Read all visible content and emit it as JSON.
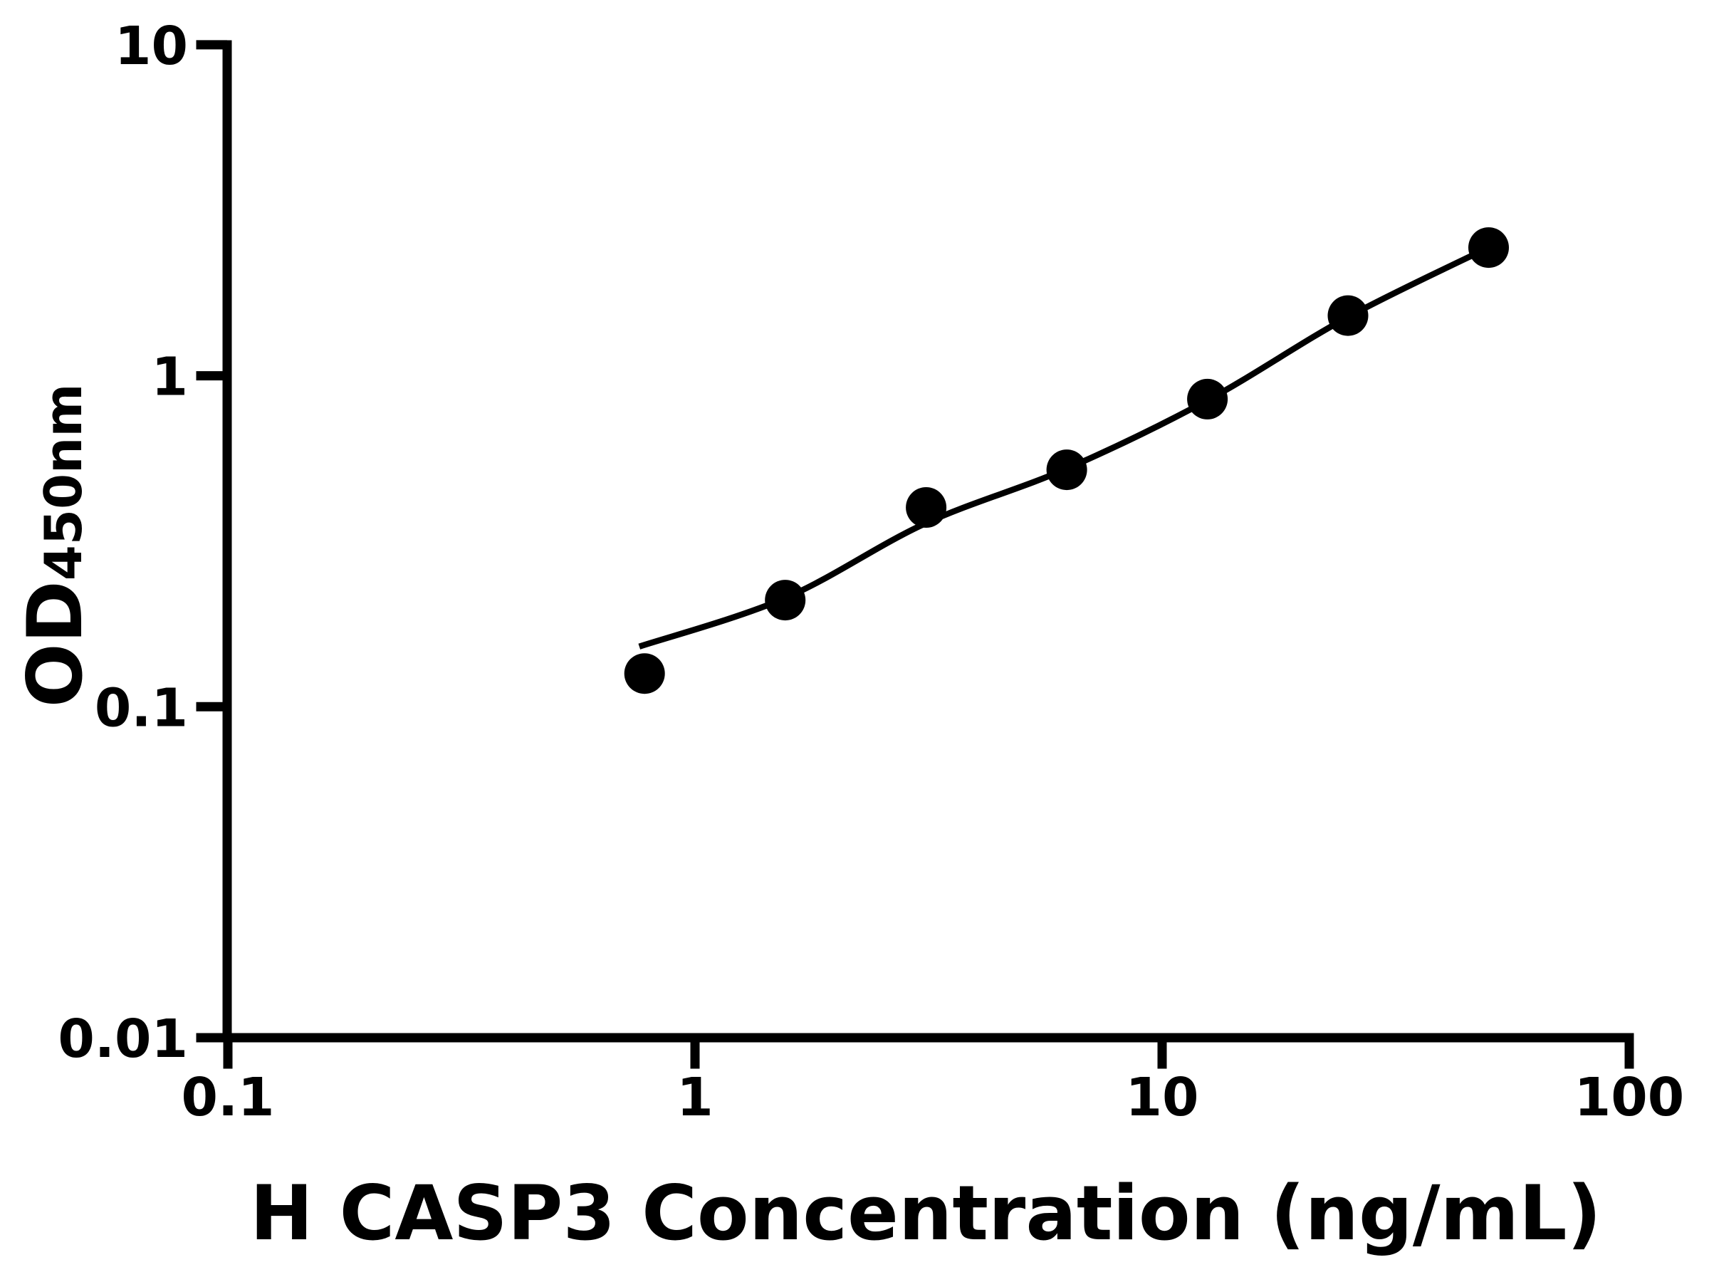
{
  "figure": {
    "background": "#ffffff",
    "foreground": "#000000"
  },
  "chart_data": {
    "type": "scatter",
    "title": "",
    "xlabel": "H CASP3 Concentration (ng/mL)",
    "ylabel_main": "OD",
    "ylabel_sub": "450nm",
    "x_scale": "log",
    "y_scale": "log",
    "xlim": [
      0.1,
      100
    ],
    "ylim": [
      0.01,
      10
    ],
    "grid": false,
    "legend_position": "none",
    "x_ticks": [
      {
        "v": 0.1,
        "label": "0.1"
      },
      {
        "v": 1,
        "label": "1"
      },
      {
        "v": 10,
        "label": "10"
      },
      {
        "v": 100,
        "label": "100"
      }
    ],
    "y_ticks": [
      {
        "v": 0.01,
        "label": "0.01"
      },
      {
        "v": 0.1,
        "label": "0.1"
      },
      {
        "v": 1,
        "label": "1"
      },
      {
        "v": 10,
        "label": "10"
      }
    ],
    "series": [
      {
        "name": "standard-points",
        "type": "scatter",
        "marker": "filled-circle",
        "color": "#000000",
        "x": [
          0.78,
          1.56,
          3.125,
          6.25,
          12.5,
          25,
          50
        ],
        "y": [
          0.126,
          0.21,
          0.4,
          0.52,
          0.85,
          1.52,
          2.44
        ]
      },
      {
        "name": "fitted-curve",
        "type": "line",
        "color": "#000000",
        "points": [
          [
            0.76,
            0.152
          ],
          [
            1.56,
            0.213
          ],
          [
            3.1,
            0.357
          ],
          [
            6.25,
            0.524
          ],
          [
            12.5,
            0.843
          ],
          [
            25,
            1.505
          ],
          [
            50,
            2.44
          ]
        ]
      }
    ]
  }
}
